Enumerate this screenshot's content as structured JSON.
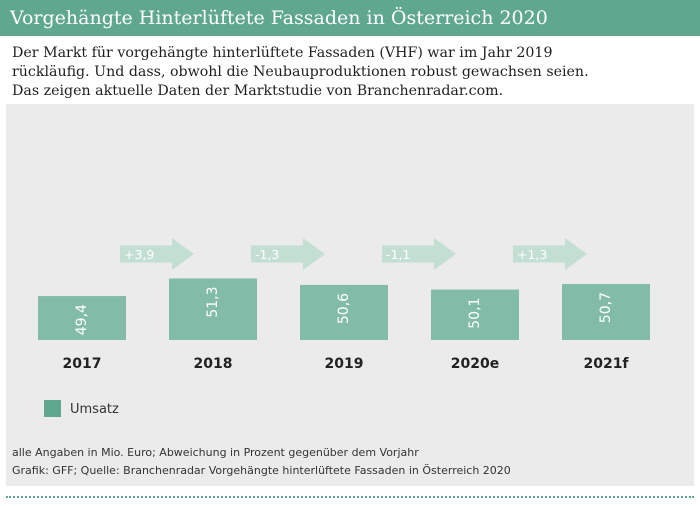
{
  "header": {
    "title": "Vorgehängte Hinterlüftete Fassaden in Österreich 2020"
  },
  "intro": [
    "Der Markt für vorgehängte hinterlüftete Fassaden (VHF) war im Jahr 2019",
    "rückläufig. Und dass, obwohl die Neubauproduktionen robust gewachsen seien.",
    "Das zeigen aktuelle Daten der Marktstudie von Branchenradar.com."
  ],
  "chart_data": {
    "type": "bar",
    "categories": [
      "2017",
      "2018",
      "2019",
      "2020e",
      "2021f"
    ],
    "series": [
      {
        "name": "Umsatz",
        "values": [
          49.4,
          51.3,
          50.6,
          50.1,
          50.7
        ],
        "labels": [
          "49,4",
          "51,3",
          "50,6",
          "50,1",
          "50,7"
        ]
      }
    ],
    "changes": [
      "+3,9",
      "-1,3",
      "-1,1",
      "+1,3"
    ],
    "legend": [
      "Umsatz"
    ],
    "legend_position": "bottom-left",
    "colors": {
      "bar": "#82bca9",
      "arrow": "#c3dfd4",
      "title_bg": "#5fa78e"
    }
  },
  "footnotes": {
    "units": "alle Angaben in Mio. Euro; Abweichung in Prozent gegenüber dem Vorjahr",
    "source": "Grafik: GFF; Quelle: Branchenradar Vorgehängte hinterlüftete Fassaden in Österreich 2020"
  }
}
